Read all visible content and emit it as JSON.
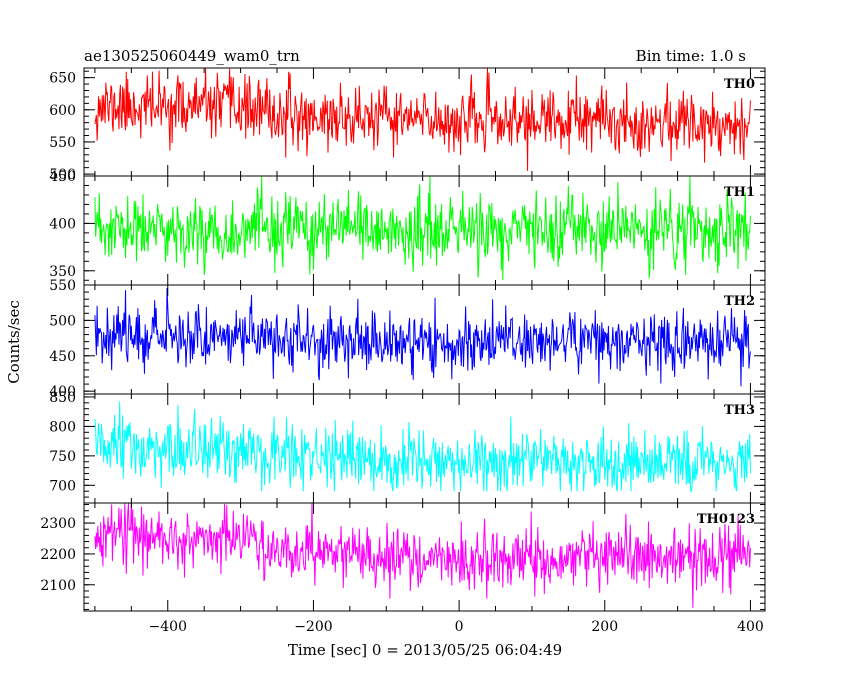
{
  "header": {
    "file_name": "ae130525060449_wam0_trn",
    "bin_time": "Bin time: 1.0 s"
  },
  "chart_data": {
    "type": "line",
    "title": "ae130525060449_wam0_trn",
    "subtitle": "Bin time: 1.0 s",
    "xlabel": "Time [sec] 0 = 2013/05/25 06:04:49",
    "ylabel": "Counts/sec",
    "xlim": [
      -515,
      420
    ],
    "x_ticks": [
      -400,
      -200,
      0,
      200,
      400
    ],
    "x_tick_labels": [
      "−400",
      "−200",
      "0",
      "200",
      "400"
    ],
    "x_range_data": [
      -500,
      400
    ],
    "bin_seconds": 1.0,
    "grid": false,
    "panels": [
      {
        "name": "TH0",
        "color": "#ff0000",
        "ylim": [
          497,
          665
        ],
        "y_ticks": [
          500,
          550,
          600,
          650
        ],
        "y_tick_labels": [
          "500",
          "550",
          "600",
          "650"
        ],
        "mean_profile": [
          [
            -500,
            605
          ],
          [
            -300,
            605
          ],
          [
            -250,
            590
          ],
          [
            0,
            583
          ],
          [
            400,
            580
          ]
        ],
        "noise_sd": 24,
        "clip": [
          505,
          665
        ],
        "seed": 11
      },
      {
        "name": "TH1",
        "color": "#00ff00",
        "ylim": [
          335,
          450
        ],
        "y_ticks": [
          350,
          400,
          450
        ],
        "y_tick_labels": [
          "350",
          "400",
          "450"
        ],
        "mean_profile": [
          [
            -500,
            392
          ],
          [
            400,
            392
          ]
        ],
        "noise_sd": 18,
        "clip": [
          340,
          450
        ],
        "seed": 23
      },
      {
        "name": "TH2",
        "color": "#0000ff",
        "ylim": [
          396,
          550
        ],
        "y_ticks": [
          400,
          450,
          500,
          550
        ],
        "y_tick_labels": [
          "400",
          "450",
          "500",
          "550"
        ],
        "mean_profile": [
          [
            -500,
            483
          ],
          [
            -300,
            478
          ],
          [
            -100,
            467
          ],
          [
            0,
            468
          ],
          [
            100,
            473
          ],
          [
            400,
            468
          ]
        ],
        "noise_sd": 21,
        "clip": [
          402,
          550
        ],
        "seed": 37
      },
      {
        "name": "TH3",
        "color": "#00ffff",
        "ylim": [
          670,
          855
        ],
        "y_ticks": [
          700,
          750,
          800,
          850
        ],
        "y_tick_labels": [
          "700",
          "750",
          "800",
          "850"
        ],
        "mean_profile": [
          [
            -500,
            765
          ],
          [
            -300,
            755
          ],
          [
            -100,
            735
          ],
          [
            100,
            738
          ],
          [
            400,
            742
          ]
        ],
        "noise_sd": 27,
        "clip": [
          690,
          855
        ],
        "seed": 51
      },
      {
        "name": "TH0123",
        "color": "#ff00ff",
        "ylim": [
          2015,
          2365
        ],
        "y_ticks": [
          2100,
          2200,
          2300
        ],
        "y_tick_labels": [
          "2100",
          "2200",
          "2300"
        ],
        "mean_profile": [
          [
            -500,
            2265
          ],
          [
            -300,
            2245
          ],
          [
            -200,
            2205
          ],
          [
            0,
            2175
          ],
          [
            200,
            2195
          ],
          [
            400,
            2190
          ]
        ],
        "noise_sd": 48,
        "clip": [
          2025,
          2365
        ],
        "seed": 67
      }
    ]
  }
}
